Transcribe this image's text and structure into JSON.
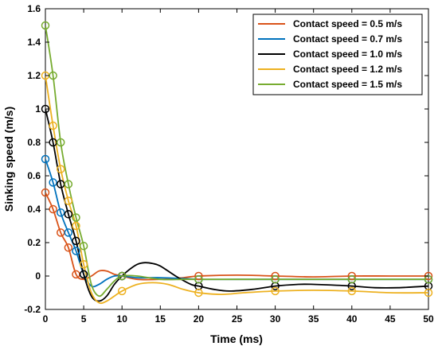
{
  "chart_data": {
    "type": "line",
    "xlabel": "Time (ms)",
    "ylabel": "Sinking speed (m/s)",
    "xlim": [
      0,
      50
    ],
    "ylim": [
      -0.2,
      1.6
    ],
    "xticks": [
      0,
      5,
      10,
      15,
      20,
      25,
      30,
      35,
      40,
      45,
      50
    ],
    "yticks": [
      -0.2,
      0,
      0.2,
      0.4,
      0.6,
      0.8,
      1,
      1.2,
      1.4,
      1.6
    ],
    "ytick_labels": [
      "-0.2",
      "0",
      "0.2",
      "0.4",
      "0.6",
      "0.8",
      "1",
      "1.2",
      "1.4",
      "1.6"
    ],
    "grid": false,
    "legend_position": "top-right",
    "series": [
      {
        "name": "Contact speed = 0.5 m/s",
        "color": "#d95319",
        "markers": [
          [
            0,
            0.5
          ],
          [
            1,
            0.4
          ],
          [
            2,
            0.26
          ],
          [
            3,
            0.17
          ],
          [
            4,
            0.01
          ],
          [
            10,
            0
          ],
          [
            20,
            0
          ],
          [
            30,
            0
          ],
          [
            40,
            0
          ],
          [
            50,
            0
          ]
        ],
        "curve": [
          [
            0,
            0.5
          ],
          [
            1,
            0.4
          ],
          [
            2,
            0.26
          ],
          [
            3,
            0.17
          ],
          [
            4,
            0.01
          ],
          [
            5,
            -0.02
          ],
          [
            6,
            0.0
          ],
          [
            7,
            0.03
          ],
          [
            8,
            0.03
          ],
          [
            9,
            0.01
          ],
          [
            10,
            0
          ],
          [
            12,
            -0.02
          ],
          [
            15,
            -0.02
          ],
          [
            18,
            -0.01
          ],
          [
            20,
            0
          ],
          [
            25,
            0.005
          ],
          [
            30,
            0
          ],
          [
            35,
            -0.005
          ],
          [
            40,
            0
          ],
          [
            45,
            0
          ],
          [
            50,
            0
          ]
        ]
      },
      {
        "name": "Contact speed = 0.7 m/s",
        "color": "#0072bd",
        "markers": [
          [
            0,
            0.7
          ],
          [
            1,
            0.56
          ],
          [
            2,
            0.38
          ],
          [
            3,
            0.26
          ],
          [
            4,
            0.15
          ],
          [
            5,
            0.01
          ],
          [
            10,
            0
          ],
          [
            20,
            -0.02
          ],
          [
            30,
            -0.02
          ],
          [
            40,
            -0.02
          ],
          [
            50,
            -0.02
          ]
        ],
        "curve": [
          [
            0,
            0.7
          ],
          [
            1,
            0.56
          ],
          [
            2,
            0.38
          ],
          [
            3,
            0.26
          ],
          [
            4,
            0.15
          ],
          [
            5,
            0.01
          ],
          [
            6,
            -0.06
          ],
          [
            7,
            -0.05
          ],
          [
            8,
            -0.02
          ],
          [
            9,
            0
          ],
          [
            10,
            0
          ],
          [
            12,
            -0.01
          ],
          [
            15,
            -0.01
          ],
          [
            18,
            -0.015
          ],
          [
            20,
            -0.02
          ],
          [
            25,
            -0.02
          ],
          [
            30,
            -0.02
          ],
          [
            35,
            -0.02
          ],
          [
            40,
            -0.02
          ],
          [
            45,
            -0.02
          ],
          [
            50,
            -0.02
          ]
        ]
      },
      {
        "name": "Contact speed = 1.0 m/s",
        "color": "#000000",
        "markers": [
          [
            0,
            1.0
          ],
          [
            1,
            0.8
          ],
          [
            2,
            0.55
          ],
          [
            3,
            0.37
          ],
          [
            4,
            0.21
          ],
          [
            5,
            0.01
          ],
          [
            10,
            0
          ],
          [
            20,
            -0.06
          ],
          [
            30,
            -0.06
          ],
          [
            40,
            -0.06
          ],
          [
            50,
            -0.06
          ]
        ],
        "curve": [
          [
            0,
            1.0
          ],
          [
            1,
            0.8
          ],
          [
            2,
            0.55
          ],
          [
            3,
            0.37
          ],
          [
            4,
            0.21
          ],
          [
            5,
            0.01
          ],
          [
            6,
            -0.12
          ],
          [
            7,
            -0.15
          ],
          [
            8,
            -0.12
          ],
          [
            9,
            -0.05
          ],
          [
            10,
            0
          ],
          [
            11,
            0.04
          ],
          [
            12,
            0.07
          ],
          [
            13,
            0.08
          ],
          [
            14,
            0.075
          ],
          [
            15,
            0.06
          ],
          [
            17,
            0.0
          ],
          [
            19,
            -0.05
          ],
          [
            20,
            -0.06
          ],
          [
            22,
            -0.08
          ],
          [
            24,
            -0.09
          ],
          [
            27,
            -0.08
          ],
          [
            30,
            -0.06
          ],
          [
            33,
            -0.05
          ],
          [
            35,
            -0.05
          ],
          [
            38,
            -0.055
          ],
          [
            40,
            -0.06
          ],
          [
            43,
            -0.07
          ],
          [
            46,
            -0.07
          ],
          [
            50,
            -0.06
          ]
        ]
      },
      {
        "name": "Contact speed = 1.2 m/s",
        "color": "#edb120",
        "markers": [
          [
            0,
            1.2
          ],
          [
            1,
            0.9
          ],
          [
            2,
            0.64
          ],
          [
            3,
            0.45
          ],
          [
            4,
            0.3
          ],
          [
            5,
            0.07
          ],
          [
            10,
            -0.09
          ],
          [
            20,
            -0.1
          ],
          [
            30,
            -0.09
          ],
          [
            40,
            -0.09
          ],
          [
            50,
            -0.1
          ]
        ],
        "curve": [
          [
            0,
            1.2
          ],
          [
            1,
            0.9
          ],
          [
            2,
            0.64
          ],
          [
            3,
            0.45
          ],
          [
            4,
            0.3
          ],
          [
            5,
            0.07
          ],
          [
            6,
            -0.1
          ],
          [
            7,
            -0.16
          ],
          [
            8,
            -0.15
          ],
          [
            9,
            -0.12
          ],
          [
            10,
            -0.09
          ],
          [
            12,
            -0.05
          ],
          [
            14,
            -0.04
          ],
          [
            16,
            -0.05
          ],
          [
            18,
            -0.08
          ],
          [
            20,
            -0.1
          ],
          [
            23,
            -0.11
          ],
          [
            26,
            -0.1
          ],
          [
            30,
            -0.09
          ],
          [
            35,
            -0.085
          ],
          [
            40,
            -0.09
          ],
          [
            45,
            -0.1
          ],
          [
            50,
            -0.1
          ]
        ]
      },
      {
        "name": "Contact speed = 1.5 m/s",
        "color": "#77ac30",
        "markers": [
          [
            0,
            1.5
          ],
          [
            1,
            1.2
          ],
          [
            2,
            0.8
          ],
          [
            3,
            0.55
          ],
          [
            4,
            0.35
          ],
          [
            5,
            0.18
          ],
          [
            10,
            0
          ],
          [
            20,
            -0.02
          ],
          [
            30,
            -0.02
          ],
          [
            40,
            -0.02
          ],
          [
            50,
            -0.02
          ]
        ],
        "curve": [
          [
            0,
            1.5
          ],
          [
            1,
            1.2
          ],
          [
            2,
            0.8
          ],
          [
            3,
            0.55
          ],
          [
            4,
            0.35
          ],
          [
            5,
            0.18
          ],
          [
            6,
            -0.05
          ],
          [
            7,
            -0.12
          ],
          [
            8,
            -0.08
          ],
          [
            9,
            -0.03
          ],
          [
            10,
            0
          ],
          [
            12,
            0.0
          ],
          [
            15,
            -0.02
          ],
          [
            18,
            -0.02
          ],
          [
            20,
            -0.02
          ],
          [
            25,
            -0.02
          ],
          [
            30,
            -0.02
          ],
          [
            35,
            -0.02
          ],
          [
            40,
            -0.02
          ],
          [
            45,
            -0.02
          ],
          [
            50,
            -0.02
          ]
        ]
      }
    ]
  }
}
